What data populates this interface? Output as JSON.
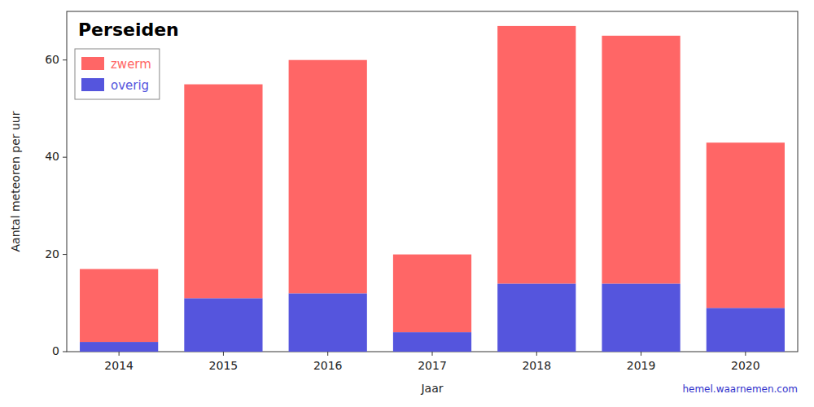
{
  "chart_data": {
    "type": "bar",
    "stacked": true,
    "title": "Perseiden",
    "xlabel": "Jaar",
    "ylabel": "Aantal meteoren per uur",
    "categories": [
      "2014",
      "2015",
      "2016",
      "2017",
      "2018",
      "2019",
      "2020"
    ],
    "series": [
      {
        "name": "overig",
        "color": "#5555DD",
        "values": [
          2,
          11,
          12,
          4,
          14,
          14,
          9
        ]
      },
      {
        "name": "zwerm",
        "color": "#FF6666",
        "values": [
          15,
          44,
          48,
          16,
          53,
          51,
          34
        ]
      }
    ],
    "ylim": [
      0,
      70
    ],
    "yticks": [
      0,
      20,
      40,
      60
    ],
    "grid": false,
    "legend": "upper left",
    "annotations": [
      "hemel.waarnemen.com"
    ]
  }
}
